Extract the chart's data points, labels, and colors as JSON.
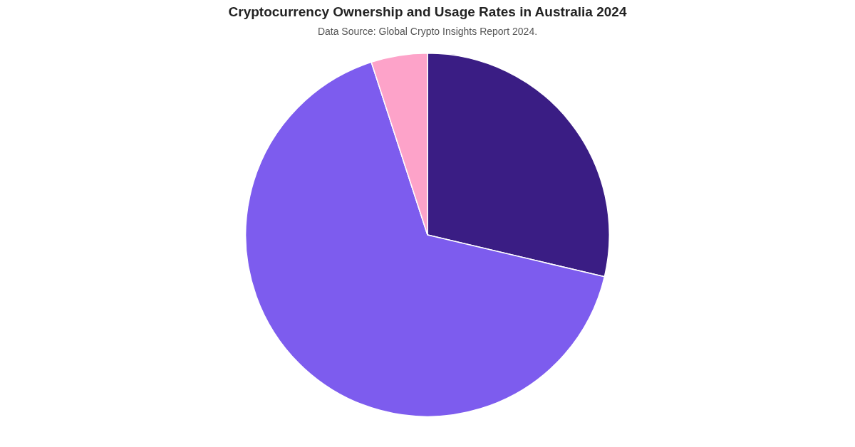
{
  "chart_data": {
    "type": "pie",
    "title": "Cryptocurrency Ownership and Usage Rates in Australia 2024",
    "annotations": [
      "Data Source: Global Crypto Insights Report 2024."
    ],
    "categories": [
      null,
      null,
      null
    ],
    "values": [
      28.7,
      66.3,
      5.0
    ],
    "colors": [
      "#3a1d84",
      "#7d5cee",
      "#fda3c9"
    ],
    "legend": false
  }
}
